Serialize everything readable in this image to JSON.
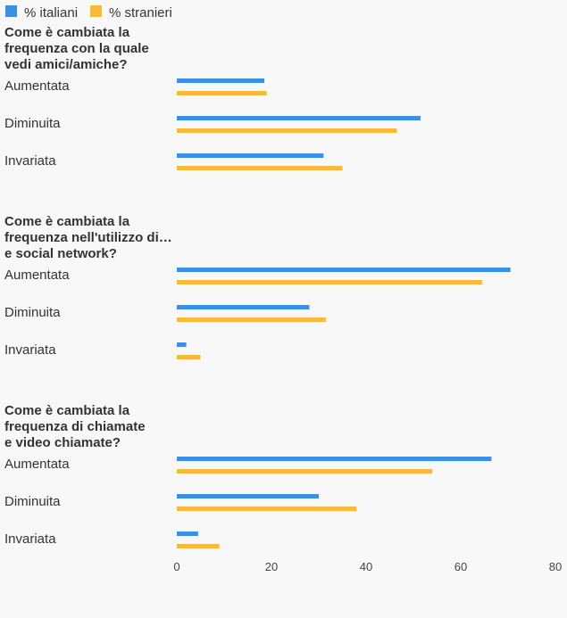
{
  "colors": {
    "italiani": "#3a8fe8",
    "stranieri": "#fbb93a",
    "background": "#f8f8f8",
    "text": "#333333"
  },
  "legend": {
    "position": "top-left",
    "items": [
      "% italiani",
      "% stranieri"
    ]
  },
  "chart_data": {
    "type": "bar",
    "orientation": "horizontal",
    "series_names": [
      "% italiani",
      "% stranieri"
    ],
    "xlim": [
      0,
      80
    ],
    "xticks": [
      0,
      20,
      40,
      60,
      80
    ],
    "grid": false,
    "groups": [
      {
        "title": [
          "Come è cambiata la",
          "frequenza con la quale",
          "vedi amici/amiche?"
        ],
        "categories": [
          "Aumentata",
          "Diminuita",
          "Invariata"
        ],
        "series": [
          {
            "name": "% italiani",
            "values": [
              18.5,
              51.5,
              31
            ]
          },
          {
            "name": "% stranieri",
            "values": [
              19,
              46.5,
              35
            ]
          }
        ]
      },
      {
        "title": [
          "Come è cambiata la",
          "frequenza nell'utilizzo di…",
          "e social network?"
        ],
        "categories": [
          "Aumentata",
          "Diminuita",
          "Invariata"
        ],
        "series": [
          {
            "name": "% italiani",
            "values": [
              70.5,
              28,
              2
            ]
          },
          {
            "name": "% stranieri",
            "values": [
              64.5,
              31.5,
              5
            ]
          }
        ]
      },
      {
        "title": [
          "Come è cambiata la",
          "frequenza di chiamate",
          "e video chiamate?"
        ],
        "categories": [
          "Aumentata",
          "Diminuita",
          "Invariata"
        ],
        "series": [
          {
            "name": "% italiani",
            "values": [
              66.5,
              30,
              4.5
            ]
          },
          {
            "name": "% stranieri",
            "values": [
              54,
              38,
              9
            ]
          }
        ]
      }
    ]
  }
}
